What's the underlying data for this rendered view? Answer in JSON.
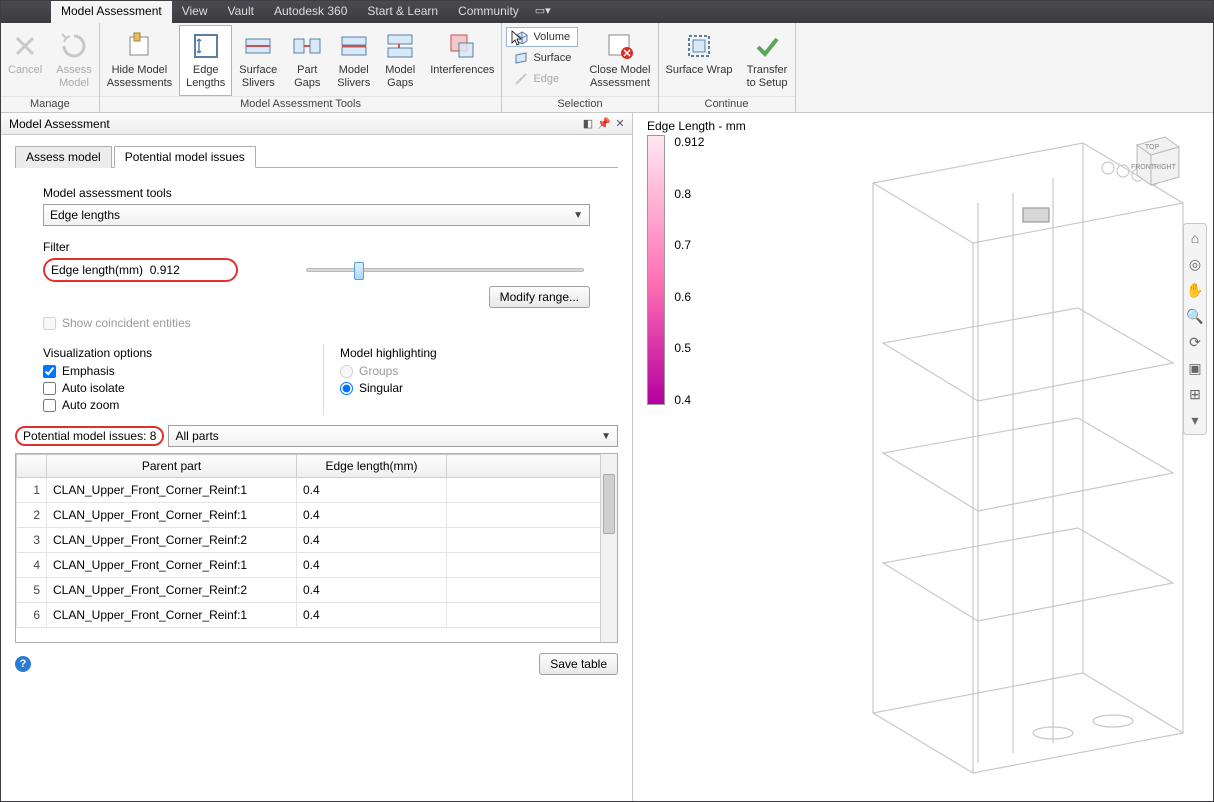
{
  "menubar": {
    "items": [
      "Model Assessment",
      "View",
      "Vault",
      "Autodesk 360",
      "Start & Learn",
      "Community"
    ],
    "active_index": 0
  },
  "ribbon": {
    "groups": [
      {
        "label": "Manage",
        "buttons": [
          {
            "name": "cancel-button",
            "label": "Cancel",
            "disabled": true
          },
          {
            "name": "assess-model-button",
            "label": "Assess\nModel",
            "disabled": true
          }
        ]
      },
      {
        "label": "Model Assessment Tools",
        "buttons": [
          {
            "name": "hide-assessments-button",
            "label": "Hide Model\nAssessments"
          },
          {
            "name": "edge-lengths-button",
            "label": "Edge\nLengths",
            "active": true
          },
          {
            "name": "surface-slivers-button",
            "label": "Surface\nSlivers"
          },
          {
            "name": "part-gaps-button",
            "label": "Part\nGaps"
          },
          {
            "name": "model-slivers-button",
            "label": "Model\nSlivers"
          },
          {
            "name": "model-gaps-button",
            "label": "Model\nGaps"
          },
          {
            "name": "interferences-button",
            "label": "Interferences"
          }
        ]
      },
      {
        "label": "Selection",
        "small_buttons": [
          {
            "name": "volume-select-button",
            "label": "Volume",
            "active": true
          },
          {
            "name": "surface-select-button",
            "label": "Surface"
          },
          {
            "name": "edge-select-button",
            "label": "Edge",
            "disabled": true
          }
        ],
        "buttons": [
          {
            "name": "close-assessment-button",
            "label": "Close Model\nAssessment"
          }
        ]
      },
      {
        "label": "Continue",
        "buttons": [
          {
            "name": "surface-wrap-button",
            "label": "Surface Wrap"
          },
          {
            "name": "transfer-setup-button",
            "label": "Transfer\nto Setup"
          }
        ]
      }
    ]
  },
  "panel": {
    "title": "Model Assessment",
    "tabs": [
      "Assess model",
      "Potential model issues"
    ],
    "active_tab": 1,
    "tools_label": "Model assessment tools",
    "tools_value": "Edge lengths",
    "filter_label": "Filter",
    "edge_label": "Edge length(mm)",
    "edge_value": "0.912",
    "slider_percent": 17,
    "modify_range_label": "Modify range...",
    "coincident_label": "Show coincident entities",
    "coincident_disabled": true,
    "vis_label": "Visualization options",
    "vis_opts": [
      {
        "label": "Emphasis",
        "checked": true
      },
      {
        "label": "Auto isolate",
        "checked": false
      },
      {
        "label": "Auto zoom",
        "checked": false
      }
    ],
    "highlight_label": "Model highlighting",
    "highlight_opts": [
      {
        "label": "Groups",
        "checked": false,
        "disabled": true
      },
      {
        "label": "Singular",
        "checked": true
      }
    ],
    "issues_label_prefix": "Potential model issues:",
    "issues_count": "8",
    "issues_scope": "All parts",
    "table": {
      "columns": [
        "",
        "Parent part",
        "Edge length(mm)"
      ],
      "rows": [
        [
          "1",
          "CLAN_Upper_Front_Corner_Reinf:1",
          "0.4"
        ],
        [
          "2",
          "CLAN_Upper_Front_Corner_Reinf:1",
          "0.4"
        ],
        [
          "3",
          "CLAN_Upper_Front_Corner_Reinf:2",
          "0.4"
        ],
        [
          "4",
          "CLAN_Upper_Front_Corner_Reinf:1",
          "0.4"
        ],
        [
          "5",
          "CLAN_Upper_Front_Corner_Reinf:2",
          "0.4"
        ],
        [
          "6",
          "CLAN_Upper_Front_Corner_Reinf:1",
          "0.4"
        ]
      ]
    },
    "save_table_label": "Save table"
  },
  "viewport": {
    "legend_title": "Edge Length - mm",
    "legend_ticks": [
      "0.912",
      "0.8",
      "0.7",
      "0.6",
      "0.5",
      "0.4"
    ],
    "viewcube": {
      "top": "TOP",
      "front": "FRONT",
      "right": "RIGHT"
    },
    "model_color": "#d5d5d5",
    "model_stroke": "#b8b8b8"
  }
}
